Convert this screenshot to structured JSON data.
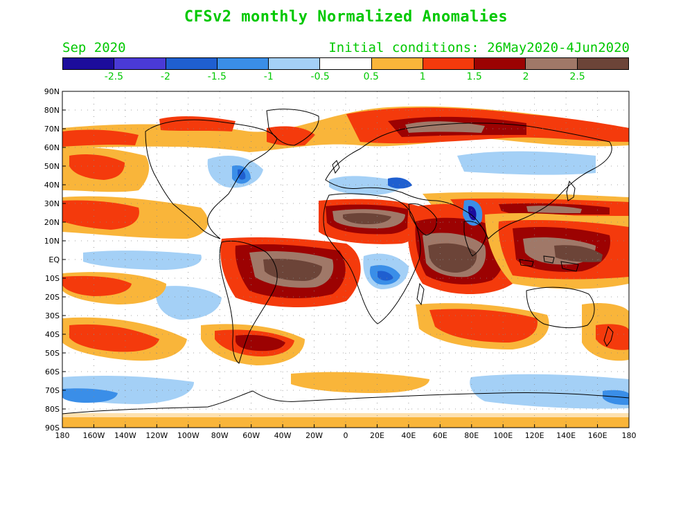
{
  "title": "CFSv2 monthly Normalized Anomalies",
  "valid_month": "Sep 2020",
  "initial_conditions": "Initial conditions: 26May2020-4Jun2020",
  "colors": {
    "title": "#00c800",
    "bins": [
      "#1c0c9c",
      "#4a3ad6",
      "#1f5fd0",
      "#3a8ee8",
      "#a4d0f6",
      "#ffffff",
      "#f9b53a",
      "#f43a0c",
      "#9c0202",
      "#a07868",
      "#6c4438"
    ]
  },
  "legend_labels": [
    "-2.5",
    "-2",
    "-1.5",
    "-1",
    "-0.5",
    "0.5",
    "1",
    "1.5",
    "2",
    "2.5"
  ],
  "map": {
    "y_ticks": [
      "90N",
      "80N",
      "70N",
      "60N",
      "50N",
      "40N",
      "30N",
      "20N",
      "10N",
      "EQ",
      "10S",
      "20S",
      "30S",
      "40S",
      "50S",
      "60S",
      "70S",
      "80S",
      "90S"
    ],
    "x_ticks": [
      "180",
      "160W",
      "140W",
      "120W",
      "100W",
      "80W",
      "60W",
      "40W",
      "20W",
      "0",
      "20E",
      "40E",
      "60E",
      "80E",
      "100E",
      "120E",
      "140E",
      "160E",
      "180"
    ]
  }
}
